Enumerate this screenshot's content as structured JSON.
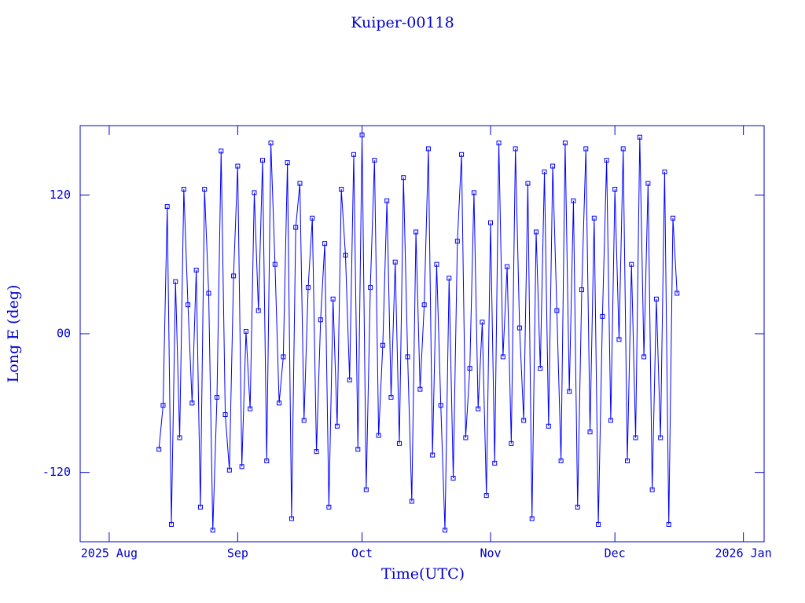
{
  "chart_data": {
    "type": "line",
    "title": "Kuiper-00118",
    "x_label": "Time(UTC)",
    "y_label": "Long E (deg)",
    "x": [
      "2025-08-13",
      "2025-08-14",
      "2025-08-15",
      "2025-08-16",
      "2025-08-17",
      "2025-08-18",
      "2025-08-19",
      "2025-08-20",
      "2025-08-21",
      "2025-08-22",
      "2025-08-23",
      "2025-08-24",
      "2025-08-25",
      "2025-08-26",
      "2025-08-27",
      "2025-08-28",
      "2025-08-29",
      "2025-08-30",
      "2025-08-31",
      "2025-09-01",
      "2025-09-02",
      "2025-09-03",
      "2025-09-04",
      "2025-09-05",
      "2025-09-06",
      "2025-09-07",
      "2025-09-08",
      "2025-09-09",
      "2025-09-10",
      "2025-09-11",
      "2025-09-12",
      "2025-09-13",
      "2025-09-14",
      "2025-09-15",
      "2025-09-16",
      "2025-09-17",
      "2025-09-18",
      "2025-09-19",
      "2025-09-20",
      "2025-09-21",
      "2025-09-22",
      "2025-09-23",
      "2025-09-24",
      "2025-09-25",
      "2025-09-26",
      "2025-09-27",
      "2025-09-28",
      "2025-09-29",
      "2025-09-30",
      "2025-10-01",
      "2025-10-02",
      "2025-10-03",
      "2025-10-04",
      "2025-10-05",
      "2025-10-06",
      "2025-10-07",
      "2025-10-08",
      "2025-10-09",
      "2025-10-10",
      "2025-10-11",
      "2025-10-12",
      "2025-10-13",
      "2025-10-14",
      "2025-10-15",
      "2025-10-16",
      "2025-10-17",
      "2025-10-18",
      "2025-10-19",
      "2025-10-20",
      "2025-10-21",
      "2025-10-22",
      "2025-10-23",
      "2025-10-24",
      "2025-10-25",
      "2025-10-26",
      "2025-10-27",
      "2025-10-28",
      "2025-10-29",
      "2025-10-30",
      "2025-10-31",
      "2025-11-01",
      "2025-11-02",
      "2025-11-03",
      "2025-11-04",
      "2025-11-05",
      "2025-11-06",
      "2025-11-07",
      "2025-11-08",
      "2025-11-09",
      "2025-11-10",
      "2025-11-11",
      "2025-11-12",
      "2025-11-13",
      "2025-11-14",
      "2025-11-15",
      "2025-11-16",
      "2025-11-17",
      "2025-11-18",
      "2025-11-19",
      "2025-11-20",
      "2025-11-21",
      "2025-11-22",
      "2025-11-23",
      "2025-11-24",
      "2025-11-25",
      "2025-11-26",
      "2025-11-27",
      "2025-11-28",
      "2025-11-29",
      "2025-11-30",
      "2025-12-01",
      "2025-12-02",
      "2025-12-03",
      "2025-12-04",
      "2025-12-05",
      "2025-12-06",
      "2025-12-07",
      "2025-12-08",
      "2025-12-09",
      "2025-12-10",
      "2025-12-11",
      "2025-12-12",
      "2025-12-13",
      "2025-12-14",
      "2025-12-15",
      "2025-12-16"
    ],
    "series": [
      {
        "color": "#0000ff",
        "values": [
          -100,
          -62,
          110,
          -165,
          45,
          -90,
          125,
          25,
          -60,
          55,
          -150,
          125,
          35,
          -170,
          -55,
          158,
          -70,
          -118,
          50,
          145,
          -115,
          2,
          -65,
          122,
          20,
          150,
          -110,
          165,
          60,
          -60,
          -20,
          148,
          -160,
          92,
          130,
          -75,
          40,
          100,
          -102,
          12,
          78,
          -150,
          30,
          -80,
          125,
          68,
          -40,
          155,
          -100,
          172,
          -135,
          40,
          150,
          -88,
          -10,
          115,
          -55,
          62,
          -95,
          135,
          -20,
          -145,
          88,
          -48,
          25,
          160,
          -105,
          60,
          -62,
          -170,
          48,
          -125,
          80,
          155,
          -90,
          -30,
          122,
          -65,
          10,
          -140,
          96,
          -112,
          165,
          -20,
          58,
          -95,
          160,
          5,
          -75,
          130,
          -160,
          88,
          -30,
          140,
          -80,
          145,
          20,
          -110,
          165,
          -50,
          115,
          -150,
          38,
          160,
          -85,
          100,
          -165,
          15,
          150,
          -75,
          125,
          -5,
          160,
          -110,
          60,
          -90,
          170,
          -20,
          130,
          -135,
          30,
          -90,
          140,
          -165,
          100,
          35
        ]
      }
    ],
    "xlim": [
      "2025-07-25",
      "2026-01-06"
    ],
    "xticks": [
      {
        "value": "2025-08-01",
        "label": "2025 Aug"
      },
      {
        "value": "2025-09-01",
        "label": "Sep"
      },
      {
        "value": "2025-10-01",
        "label": "Oct"
      },
      {
        "value": "2025-11-01",
        "label": "Nov"
      },
      {
        "value": "2025-12-01",
        "label": "Dec"
      },
      {
        "value": "2026-01-01",
        "label": "2026 Jan"
      }
    ],
    "ylim": [
      -180,
      180
    ],
    "yticks": [
      -120,
      {
        "value": 0,
        "label": "00"
      },
      120
    ],
    "grid": false
  }
}
